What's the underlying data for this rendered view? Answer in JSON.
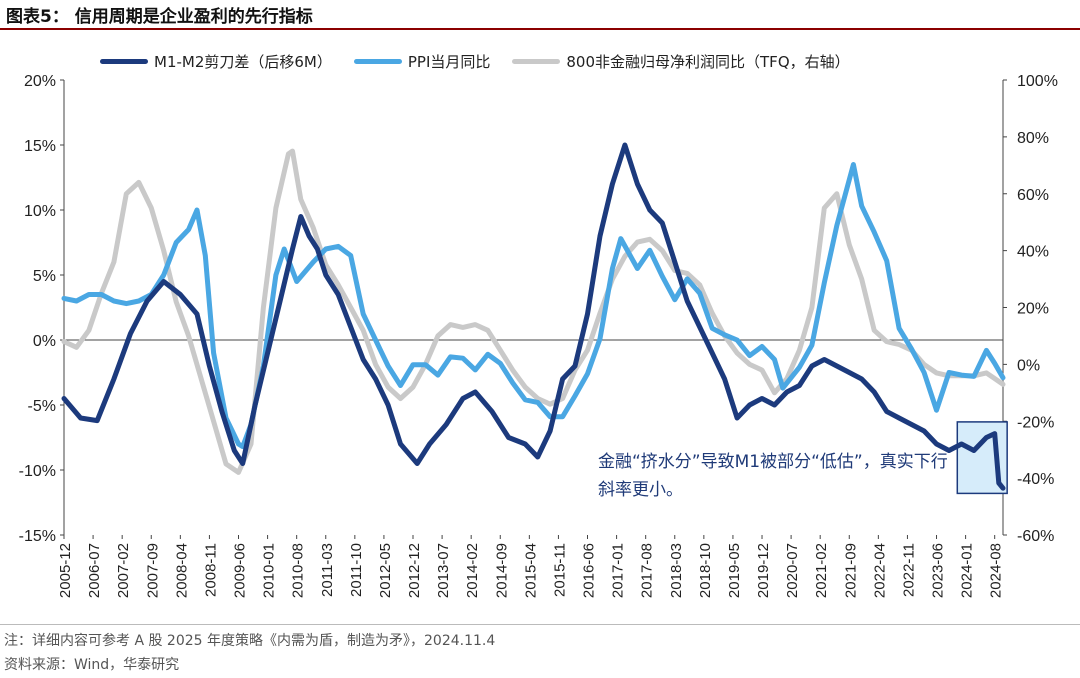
{
  "header": {
    "title": "图表5：  信用周期是企业盈利的先行指标"
  },
  "colors": {
    "m1m2": "#1c3a7d",
    "ppi": "#4aa7e3",
    "profit": "#c9c9c9",
    "title_rule": "#8B0000",
    "callout_fill": "#d6ecfa",
    "callout_stroke": "#1c3a7d"
  },
  "callout": {
    "text": "金融“挤水分”导致M1被部分“低估”，真实下行斜率更小。"
  },
  "footer": {
    "note": "注：详细内容可参考 A 股 2025 年度策略《内需为盾，制造为矛》，2024.11.4",
    "source": "资料来源：Wind，华泰研究"
  },
  "chart_data": {
    "type": "line",
    "x_start": "2005-12",
    "x_end": "2024-10",
    "x_ticks": [
      "2005-12",
      "2006-07",
      "2007-02",
      "2007-09",
      "2008-04",
      "2008-11",
      "2009-06",
      "2010-01",
      "2010-08",
      "2011-03",
      "2011-10",
      "2012-05",
      "2012-12",
      "2013-07",
      "2014-02",
      "2014-09",
      "2015-04",
      "2015-11",
      "2016-06",
      "2017-01",
      "2017-08",
      "2018-03",
      "2018-10",
      "2019-05",
      "2019-12",
      "2020-07",
      "2021-02",
      "2021-09",
      "2022-04",
      "2022-11",
      "2023-06",
      "2024-01",
      "2024-08"
    ],
    "y_left": {
      "min": -15,
      "max": 20,
      "step": 5,
      "ticks": [
        "-15%",
        "-10%",
        "-5%",
        "0%",
        "5%",
        "10%",
        "15%",
        "20%"
      ]
    },
    "y_right": {
      "min": -60,
      "max": 100,
      "step": 20,
      "ticks": [
        "-60%",
        "-40%",
        "-20%",
        "0%",
        "20%",
        "40%",
        "60%",
        "80%",
        "100%"
      ]
    },
    "legend_position": "top",
    "series": [
      {
        "name": "M1-M2剪刀差（后移6M）",
        "axis": "left",
        "points": [
          [
            "2005-12",
            -4.5
          ],
          [
            "2006-04",
            -6.0
          ],
          [
            "2006-08",
            -6.2
          ],
          [
            "2006-12",
            -3.0
          ],
          [
            "2007-04",
            0.5
          ],
          [
            "2007-08",
            3.0
          ],
          [
            "2007-12",
            4.5
          ],
          [
            "2008-04",
            3.5
          ],
          [
            "2008-08",
            2.0
          ],
          [
            "2008-11",
            -2.0
          ],
          [
            "2009-02",
            -5.5
          ],
          [
            "2009-05",
            -8.5
          ],
          [
            "2009-07",
            -9.5
          ],
          [
            "2009-10",
            -5.0
          ],
          [
            "2010-01",
            -1.0
          ],
          [
            "2010-04",
            3.0
          ],
          [
            "2010-07",
            7.0
          ],
          [
            "2010-09",
            9.5
          ],
          [
            "2010-11",
            8.0
          ],
          [
            "2011-01",
            7.0
          ],
          [
            "2011-03",
            5.0
          ],
          [
            "2011-06",
            3.5
          ],
          [
            "2011-09",
            1.0
          ],
          [
            "2011-12",
            -1.5
          ],
          [
            "2012-03",
            -3.0
          ],
          [
            "2012-06",
            -5.0
          ],
          [
            "2012-09",
            -8.0
          ],
          [
            "2013-01",
            -9.5
          ],
          [
            "2013-04",
            -8.0
          ],
          [
            "2013-08",
            -6.5
          ],
          [
            "2013-12",
            -4.5
          ],
          [
            "2014-03",
            -4.0
          ],
          [
            "2014-07",
            -5.5
          ],
          [
            "2014-11",
            -7.5
          ],
          [
            "2015-03",
            -8.0
          ],
          [
            "2015-06",
            -9.0
          ],
          [
            "2015-09",
            -7.0
          ],
          [
            "2015-12",
            -3.0
          ],
          [
            "2016-03",
            -2.0
          ],
          [
            "2016-06",
            2.0
          ],
          [
            "2016-09",
            8.0
          ],
          [
            "2016-12",
            12.0
          ],
          [
            "2017-03",
            15.0
          ],
          [
            "2017-06",
            12.0
          ],
          [
            "2017-09",
            10.0
          ],
          [
            "2017-12",
            9.0
          ],
          [
            "2018-03",
            6.0
          ],
          [
            "2018-06",
            3.0
          ],
          [
            "2018-09",
            1.0
          ],
          [
            "2018-12",
            -1.0
          ],
          [
            "2019-03",
            -3.0
          ],
          [
            "2019-06",
            -6.0
          ],
          [
            "2019-09",
            -5.0
          ],
          [
            "2019-12",
            -4.5
          ],
          [
            "2020-03",
            -5.0
          ],
          [
            "2020-06",
            -4.0
          ],
          [
            "2020-09",
            -3.5
          ],
          [
            "2020-12",
            -2.0
          ],
          [
            "2021-03",
            -1.5
          ],
          [
            "2021-06",
            -2.0
          ],
          [
            "2021-09",
            -2.5
          ],
          [
            "2021-12",
            -3.0
          ],
          [
            "2022-03",
            -4.0
          ],
          [
            "2022-06",
            -5.5
          ],
          [
            "2022-09",
            -6.0
          ],
          [
            "2022-12",
            -6.5
          ],
          [
            "2023-03",
            -7.0
          ],
          [
            "2023-06",
            -8.0
          ],
          [
            "2023-09",
            -8.5
          ],
          [
            "2023-12",
            -8.0
          ],
          [
            "2024-03",
            -8.5
          ],
          [
            "2024-06",
            -7.5
          ],
          [
            "2024-08",
            -7.2
          ],
          [
            "2024-09",
            -11.0
          ],
          [
            "2024-10",
            -11.4
          ]
        ]
      },
      {
        "name": "PPI当月同比",
        "axis": "left",
        "points": [
          [
            "2005-12",
            3.2
          ],
          [
            "2006-03",
            3.0
          ],
          [
            "2006-06",
            3.5
          ],
          [
            "2006-09",
            3.5
          ],
          [
            "2006-12",
            3.0
          ],
          [
            "2007-03",
            2.8
          ],
          [
            "2007-06",
            3.0
          ],
          [
            "2007-09",
            3.5
          ],
          [
            "2007-12",
            5.0
          ],
          [
            "2008-03",
            7.5
          ],
          [
            "2008-06",
            8.5
          ],
          [
            "2008-08",
            10.0
          ],
          [
            "2008-10",
            6.5
          ],
          [
            "2008-12",
            -1.0
          ],
          [
            "2009-03",
            -6.0
          ],
          [
            "2009-06",
            -8.0
          ],
          [
            "2009-07",
            -8.2
          ],
          [
            "2009-09",
            -6.5
          ],
          [
            "2009-12",
            -2.0
          ],
          [
            "2010-03",
            5.0
          ],
          [
            "2010-05",
            7.0
          ],
          [
            "2010-08",
            4.5
          ],
          [
            "2010-12",
            6.0
          ],
          [
            "2011-03",
            7.0
          ],
          [
            "2011-06",
            7.2
          ],
          [
            "2011-09",
            6.5
          ],
          [
            "2011-12",
            2.0
          ],
          [
            "2012-03",
            0.0
          ],
          [
            "2012-06",
            -2.0
          ],
          [
            "2012-09",
            -3.5
          ],
          [
            "2012-12",
            -1.9
          ],
          [
            "2013-03",
            -1.9
          ],
          [
            "2013-06",
            -2.7
          ],
          [
            "2013-09",
            -1.3
          ],
          [
            "2013-12",
            -1.4
          ],
          [
            "2014-03",
            -2.3
          ],
          [
            "2014-06",
            -1.1
          ],
          [
            "2014-09",
            -1.8
          ],
          [
            "2014-12",
            -3.3
          ],
          [
            "2015-03",
            -4.6
          ],
          [
            "2015-06",
            -4.8
          ],
          [
            "2015-09",
            -5.9
          ],
          [
            "2015-12",
            -5.9
          ],
          [
            "2016-03",
            -4.3
          ],
          [
            "2016-06",
            -2.6
          ],
          [
            "2016-09",
            0.1
          ],
          [
            "2016-12",
            5.5
          ],
          [
            "2017-02",
            7.8
          ],
          [
            "2017-06",
            5.5
          ],
          [
            "2017-09",
            6.9
          ],
          [
            "2017-12",
            4.9
          ],
          [
            "2018-03",
            3.1
          ],
          [
            "2018-06",
            4.7
          ],
          [
            "2018-09",
            3.6
          ],
          [
            "2018-12",
            0.9
          ],
          [
            "2019-03",
            0.4
          ],
          [
            "2019-06",
            0.0
          ],
          [
            "2019-09",
            -1.2
          ],
          [
            "2019-12",
            -0.5
          ],
          [
            "2020-03",
            -1.5
          ],
          [
            "2020-05",
            -3.7
          ],
          [
            "2020-09",
            -2.1
          ],
          [
            "2020-12",
            -0.4
          ],
          [
            "2021-03",
            4.4
          ],
          [
            "2021-06",
            8.8
          ],
          [
            "2021-10",
            13.5
          ],
          [
            "2021-12",
            10.3
          ],
          [
            "2022-03",
            8.3
          ],
          [
            "2022-06",
            6.1
          ],
          [
            "2022-09",
            0.9
          ],
          [
            "2022-12",
            -0.7
          ],
          [
            "2023-03",
            -2.5
          ],
          [
            "2023-06",
            -5.4
          ],
          [
            "2023-09",
            -2.5
          ],
          [
            "2023-12",
            -2.7
          ],
          [
            "2024-03",
            -2.8
          ],
          [
            "2024-06",
            -0.8
          ],
          [
            "2024-08",
            -1.8
          ],
          [
            "2024-10",
            -2.9
          ]
        ]
      },
      {
        "name": "800非金融归母净利润同比（TFQ，右轴）",
        "axis": "right",
        "points": [
          [
            "2005-12",
            8
          ],
          [
            "2006-03",
            6
          ],
          [
            "2006-06",
            12
          ],
          [
            "2006-09",
            25
          ],
          [
            "2006-12",
            36
          ],
          [
            "2007-03",
            60
          ],
          [
            "2007-06",
            64
          ],
          [
            "2007-09",
            55
          ],
          [
            "2007-12",
            40
          ],
          [
            "2008-03",
            22
          ],
          [
            "2008-06",
            10
          ],
          [
            "2008-09",
            -5
          ],
          [
            "2008-12",
            -20
          ],
          [
            "2009-03",
            -35
          ],
          [
            "2009-06",
            -38
          ],
          [
            "2009-09",
            -28
          ],
          [
            "2009-12",
            20
          ],
          [
            "2010-03",
            55
          ],
          [
            "2010-06",
            74
          ],
          [
            "2010-07",
            75
          ],
          [
            "2010-09",
            58
          ],
          [
            "2010-12",
            48
          ],
          [
            "2011-03",
            35
          ],
          [
            "2011-06",
            28
          ],
          [
            "2011-09",
            20
          ],
          [
            "2011-12",
            12
          ],
          [
            "2012-03",
            0
          ],
          [
            "2012-06",
            -8
          ],
          [
            "2012-09",
            -12
          ],
          [
            "2012-12",
            -8
          ],
          [
            "2013-03",
            0
          ],
          [
            "2013-06",
            10
          ],
          [
            "2013-09",
            14
          ],
          [
            "2013-12",
            13
          ],
          [
            "2014-03",
            14
          ],
          [
            "2014-06",
            12
          ],
          [
            "2014-09",
            5
          ],
          [
            "2014-12",
            -2
          ],
          [
            "2015-03",
            -8
          ],
          [
            "2015-06",
            -12
          ],
          [
            "2015-09",
            -14
          ],
          [
            "2015-12",
            -12
          ],
          [
            "2016-03",
            -2
          ],
          [
            "2016-06",
            5
          ],
          [
            "2016-09",
            18
          ],
          [
            "2016-12",
            30
          ],
          [
            "2017-03",
            38
          ],
          [
            "2017-06",
            43
          ],
          [
            "2017-09",
            44
          ],
          [
            "2017-12",
            40
          ],
          [
            "2018-03",
            33
          ],
          [
            "2018-06",
            32
          ],
          [
            "2018-09",
            28
          ],
          [
            "2018-12",
            18
          ],
          [
            "2019-03",
            10
          ],
          [
            "2019-06",
            4
          ],
          [
            "2019-09",
            0
          ],
          [
            "2019-12",
            -2
          ],
          [
            "2020-03",
            -10
          ],
          [
            "2020-06",
            -5
          ],
          [
            "2020-09",
            5
          ],
          [
            "2020-12",
            20
          ],
          [
            "2021-03",
            55
          ],
          [
            "2021-06",
            60
          ],
          [
            "2021-09",
            42
          ],
          [
            "2021-12",
            30
          ],
          [
            "2022-03",
            12
          ],
          [
            "2022-06",
            8
          ],
          [
            "2022-09",
            7
          ],
          [
            "2022-12",
            5
          ],
          [
            "2023-03",
            0
          ],
          [
            "2023-06",
            -3
          ],
          [
            "2023-09",
            -4
          ],
          [
            "2023-12",
            -4
          ],
          [
            "2024-03",
            -4
          ],
          [
            "2024-06",
            -3
          ],
          [
            "2024-08",
            -5
          ],
          [
            "2024-10",
            -7
          ]
        ]
      }
    ],
    "highlight_box": {
      "x0": "2023-11",
      "x1": "2024-11",
      "y0": -11.8,
      "y1": -6.3,
      "axis": "left"
    }
  }
}
